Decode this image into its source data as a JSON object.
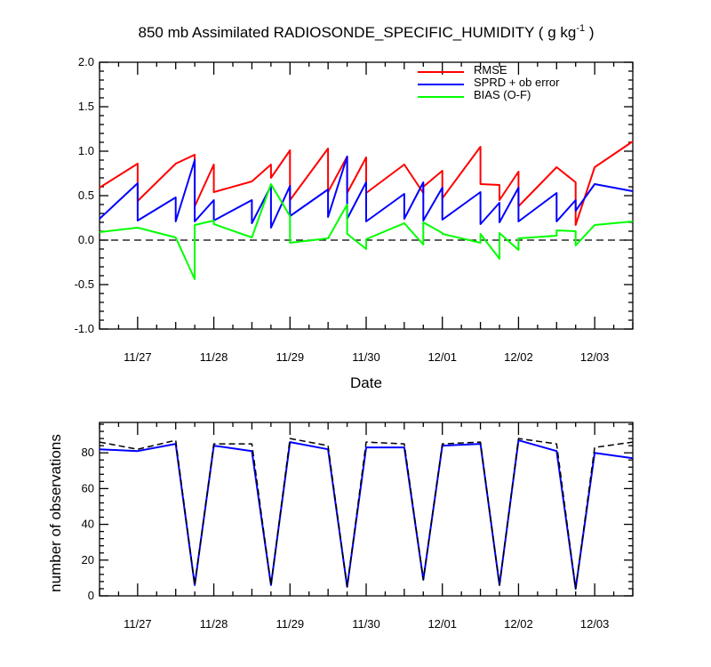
{
  "figure": {
    "title_main": "850 mb Assimilated RADIOSONDE_SPECIFIC_HUMIDITY ( g kg",
    "title_sup": "-1",
    "title_end": " )"
  },
  "chart_data": [
    {
      "type": "line",
      "xlabel": "Date",
      "ylabel": "",
      "xticks": [
        "11/27",
        "11/28",
        "11/29",
        "11/30",
        "12/01",
        "12/02",
        "12/03"
      ],
      "xtick_values": [
        1,
        2,
        3,
        4,
        5,
        6,
        7
      ],
      "xlim": [
        0.5,
        7.5
      ],
      "ylim": [
        -1.0,
        2.0
      ],
      "yticks": [
        "2.0",
        "1.5",
        "1.0",
        "0.5",
        "0.0",
        "-0.5",
        "-1.0"
      ],
      "ytick_values": [
        2.0,
        1.5,
        1.0,
        0.5,
        0.0,
        -0.5,
        -1.0
      ],
      "zero_line": true,
      "legend_position": "top-right",
      "series": [
        {
          "name": "RMSE",
          "color": "#ff0000",
          "x": [
            0.5,
            1.0,
            1.0,
            1.5,
            1.75,
            1.75,
            2.0,
            2.0,
            2.5,
            2.75,
            2.75,
            3.0,
            3.0,
            3.5,
            3.5,
            3.75,
            3.75,
            4.0,
            4.0,
            4.5,
            4.75,
            4.75,
            5.0,
            5.0,
            5.5,
            5.5,
            5.75,
            5.75,
            6.0,
            6.0,
            6.5,
            6.75,
            6.75,
            7.0,
            7.5
          ],
          "y": [
            0.59,
            0.86,
            0.44,
            0.86,
            0.96,
            0.38,
            0.85,
            0.54,
            0.66,
            0.85,
            0.7,
            1.01,
            0.45,
            1.03,
            0.54,
            0.94,
            0.53,
            0.93,
            0.53,
            0.85,
            0.53,
            0.6,
            0.78,
            0.47,
            1.05,
            0.63,
            0.62,
            0.45,
            0.77,
            0.38,
            0.82,
            0.65,
            0.17,
            0.82,
            1.11
          ]
        },
        {
          "name": "SPRD + ob error",
          "color": "#0000ff",
          "x": [
            0.5,
            1.0,
            1.0,
            1.5,
            1.5,
            1.75,
            1.75,
            2.0,
            2.0,
            2.5,
            2.5,
            2.75,
            2.75,
            3.0,
            3.0,
            3.5,
            3.5,
            3.75,
            3.75,
            4.0,
            4.0,
            4.5,
            4.5,
            4.75,
            4.75,
            5.0,
            5.0,
            5.5,
            5.5,
            5.75,
            5.75,
            6.0,
            6.0,
            6.5,
            6.5,
            6.75,
            6.75,
            7.0,
            7.5
          ],
          "y": [
            0.24,
            0.64,
            0.22,
            0.48,
            0.21,
            0.9,
            0.21,
            0.45,
            0.22,
            0.45,
            0.19,
            0.61,
            0.14,
            0.61,
            0.27,
            0.57,
            0.26,
            0.94,
            0.24,
            0.65,
            0.21,
            0.52,
            0.24,
            0.65,
            0.22,
            0.59,
            0.23,
            0.54,
            0.18,
            0.42,
            0.2,
            0.59,
            0.21,
            0.53,
            0.21,
            0.45,
            0.33,
            0.63,
            0.55
          ]
        },
        {
          "name": "BIAS (O-F)",
          "color": "#00ff00",
          "x": [
            0.5,
            1.0,
            1.5,
            1.75,
            1.75,
            2.0,
            2.0,
            2.5,
            2.75,
            3.0,
            3.0,
            3.5,
            3.75,
            3.75,
            4.0,
            4.0,
            4.5,
            4.75,
            4.75,
            5.0,
            5.0,
            5.5,
            5.5,
            5.75,
            5.75,
            6.0,
            6.0,
            6.5,
            6.5,
            6.75,
            6.75,
            7.0,
            7.5
          ],
          "y": [
            0.09,
            0.14,
            0.03,
            -0.44,
            0.17,
            0.22,
            0.18,
            0.03,
            0.63,
            0.27,
            -0.03,
            0.02,
            0.4,
            0.07,
            -0.1,
            0.01,
            0.19,
            -0.05,
            0.2,
            0.08,
            0.07,
            -0.03,
            0.07,
            -0.21,
            0.08,
            -0.11,
            0.02,
            0.05,
            0.11,
            0.1,
            -0.06,
            0.17,
            0.21
          ]
        }
      ]
    },
    {
      "type": "line",
      "xlabel": "",
      "ylabel": "number of observations",
      "xticks": [
        "11/27",
        "11/28",
        "11/29",
        "11/30",
        "12/01",
        "12/02",
        "12/03"
      ],
      "xtick_values": [
        1,
        2,
        3,
        4,
        5,
        6,
        7
      ],
      "xlim": [
        0.5,
        7.5
      ],
      "ylim": [
        0,
        97
      ],
      "yticks": [
        "80",
        "60",
        "40",
        "20",
        "0"
      ],
      "ytick_values": [
        80,
        60,
        40,
        20,
        0
      ],
      "series": [
        {
          "color": "#0000ff",
          "style": "solid",
          "x": [
            0.5,
            1.0,
            1.5,
            1.75,
            2.0,
            2.5,
            2.75,
            3.0,
            3.5,
            3.75,
            4.0,
            4.5,
            4.75,
            5.0,
            5.5,
            5.75,
            6.0,
            6.5,
            6.75,
            7.0,
            7.5
          ],
          "y": [
            82,
            81,
            85,
            6,
            84,
            81,
            6,
            86,
            82,
            5,
            83,
            83,
            9,
            84,
            85,
            6,
            87,
            81,
            4,
            80,
            77
          ]
        },
        {
          "color": "#000000",
          "style": "dashed",
          "x": [
            0.5,
            1.0,
            1.5,
            1.75,
            2.0,
            2.5,
            2.75,
            3.0,
            3.5,
            3.75,
            4.0,
            4.5,
            4.75,
            5.0,
            5.5,
            5.75,
            6.0,
            6.5,
            6.75,
            7.0,
            7.5
          ],
          "y": [
            86,
            82,
            87,
            6,
            85,
            85,
            6,
            88,
            84,
            5,
            86,
            85,
            9,
            85,
            86,
            6,
            88,
            85,
            4,
            83,
            86
          ]
        }
      ]
    }
  ]
}
